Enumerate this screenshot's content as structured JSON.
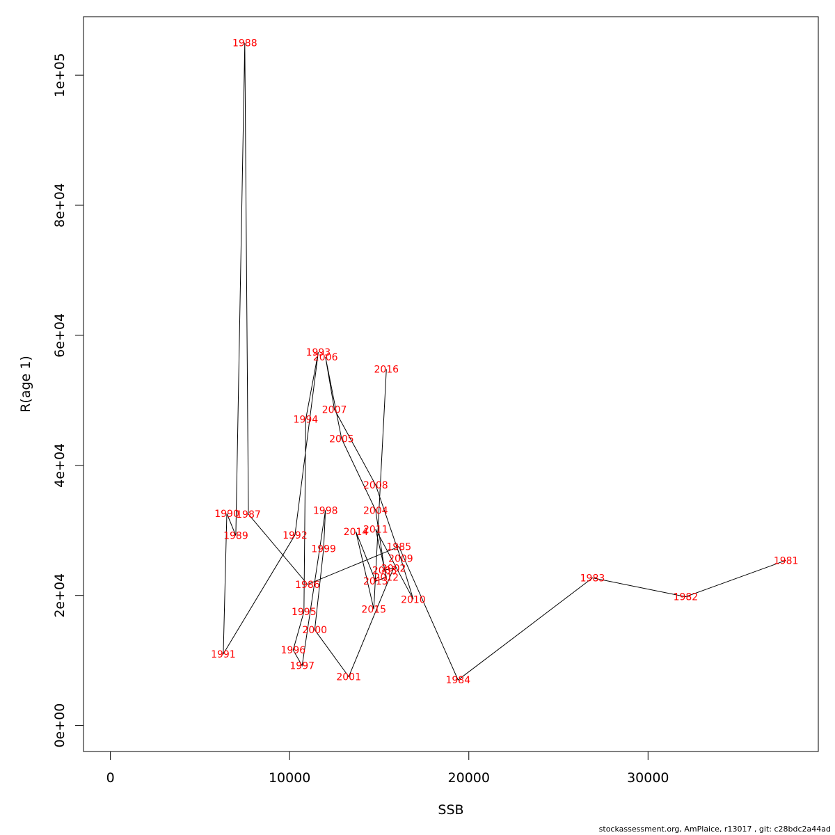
{
  "chart_data": {
    "type": "line",
    "xlabel": "SSB",
    "ylabel": "R(age 1)",
    "xlim": [
      -1500,
      39500
    ],
    "ylim": [
      -4000,
      109000
    ],
    "xticks": [
      0,
      10000,
      20000,
      30000
    ],
    "xtick_labels": [
      "0",
      "10000",
      "20000",
      "30000"
    ],
    "yticks": [
      0,
      20000,
      40000,
      60000,
      80000,
      100000
    ],
    "ytick_labels": [
      "0e+00",
      "2e+04",
      "4e+04",
      "6e+04",
      "8e+04",
      "1e+05"
    ],
    "grid": false,
    "legend": "none",
    "line_color": "#000000",
    "label_color": "#ff0000",
    "points": [
      {
        "year": "1981",
        "x": 37700,
        "y": 25400
      },
      {
        "year": "1982",
        "x": 32100,
        "y": 19800
      },
      {
        "year": "1983",
        "x": 26900,
        "y": 22700
      },
      {
        "year": "1984",
        "x": 19400,
        "y": 7000
      },
      {
        "year": "1985",
        "x": 16100,
        "y": 27500
      },
      {
        "year": "1986",
        "x": 11000,
        "y": 21700
      },
      {
        "year": "1987",
        "x": 7700,
        "y": 32500
      },
      {
        "year": "1988",
        "x": 7500,
        "y": 105000
      },
      {
        "year": "1989",
        "x": 7000,
        "y": 29200
      },
      {
        "year": "1990",
        "x": 6500,
        "y": 32600
      },
      {
        "year": "1991",
        "x": 6300,
        "y": 11000
      },
      {
        "year": "1992",
        "x": 10300,
        "y": 29300
      },
      {
        "year": "1993",
        "x": 11600,
        "y": 57400
      },
      {
        "year": "1994",
        "x": 10900,
        "y": 47100
      },
      {
        "year": "1995",
        "x": 10800,
        "y": 17500
      },
      {
        "year": "1996",
        "x": 10200,
        "y": 11600
      },
      {
        "year": "1997",
        "x": 10700,
        "y": 9200
      },
      {
        "year": "1998",
        "x": 12000,
        "y": 33100
      },
      {
        "year": "1999",
        "x": 11900,
        "y": 27200
      },
      {
        "year": "2000",
        "x": 11400,
        "y": 14700
      },
      {
        "year": "2001",
        "x": 13300,
        "y": 7500
      },
      {
        "year": "2002",
        "x": 15800,
        "y": 24200
      },
      {
        "year": "2003",
        "x": 15300,
        "y": 23900
      },
      {
        "year": "2004",
        "x": 14800,
        "y": 33100
      },
      {
        "year": "2005",
        "x": 12900,
        "y": 44100
      },
      {
        "year": "2006",
        "x": 12000,
        "y": 56700
      },
      {
        "year": "2007",
        "x": 12500,
        "y": 48600
      },
      {
        "year": "2008",
        "x": 14800,
        "y": 37000
      },
      {
        "year": "2009",
        "x": 16200,
        "y": 25700
      },
      {
        "year": "2010",
        "x": 16900,
        "y": 19400
      },
      {
        "year": "2011",
        "x": 14800,
        "y": 30200
      },
      {
        "year": "2012",
        "x": 15400,
        "y": 22800
      },
      {
        "year": "2013",
        "x": 14800,
        "y": 22200
      },
      {
        "year": "2014",
        "x": 13700,
        "y": 29800
      },
      {
        "year": "2015",
        "x": 14700,
        "y": 17900
      },
      {
        "year": "2016",
        "x": 15400,
        "y": 54800
      }
    ]
  },
  "footer_text": "stockassessment.org, AmPlaice, r13017 , git: c28bdc2a44ad"
}
